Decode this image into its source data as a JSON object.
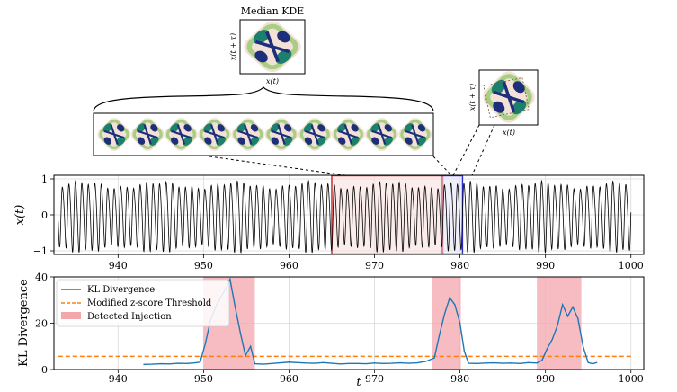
{
  "chart_data": [
    {
      "type": "line",
      "panel": "time-series",
      "ylabel": "x(t)",
      "xlim": [
        932.5,
        1001.5
      ],
      "ylim": [
        -1.1,
        1.1
      ],
      "xticks": [
        "940",
        "950",
        "960",
        "970",
        "980",
        "990",
        "1000"
      ],
      "yticks": [
        "1",
        "0",
        "-1"
      ],
      "grid": true,
      "series": [
        {
          "name": "x(t)",
          "color": "#000000",
          "description": "periodic oscillation, amplitude ~0.8-1.0, period ~1"
        }
      ],
      "highlights": [
        {
          "name": "median-window",
          "x_start": 965,
          "x_end": 978,
          "color": "#cc3333"
        },
        {
          "name": "current-window",
          "x_start": 977.8,
          "x_end": 980.3,
          "color": "#3333cc"
        }
      ]
    },
    {
      "type": "line",
      "panel": "kl-divergence",
      "xlabel": "t",
      "ylabel": "KL Divergence",
      "xlim": [
        932.5,
        1001.5
      ],
      "ylim": [
        0,
        40
      ],
      "xticks": [
        "940",
        "950",
        "960",
        "970",
        "980",
        "990",
        "1000"
      ],
      "yticks": [
        "0",
        "20",
        "40"
      ],
      "grid": true,
      "legend_position": "top-left",
      "series": [
        {
          "name": "KL Divergence",
          "color": "#1f77b4",
          "x": [
            943,
            944,
            945,
            946,
            947,
            948,
            949,
            949.6,
            950.2,
            950.8,
            951.4,
            952,
            952.6,
            953.1,
            953.7,
            954.3,
            954.9,
            955.5,
            956,
            957,
            958,
            959,
            960,
            961,
            962,
            963,
            964,
            965,
            966,
            967,
            968,
            969,
            970,
            971,
            972,
            973,
            974,
            975,
            976,
            977,
            977.6,
            978.2,
            978.8,
            979.4,
            980,
            980.5,
            981,
            982,
            983,
            984,
            985,
            986,
            987,
            988,
            989,
            989.6,
            990.2,
            990.8,
            991.4,
            992,
            992.6,
            993.2,
            993.8,
            994.4,
            995,
            995.5,
            996
          ],
          "y": [
            2.2,
            2.3,
            2.5,
            2.4,
            2.7,
            2.6,
            2.9,
            3.2,
            11,
            21,
            27,
            31,
            35,
            39,
            27,
            16,
            6,
            10,
            2.5,
            2.3,
            2.6,
            2.9,
            3.2,
            3,
            2.8,
            2.7,
            3,
            2.7,
            2.4,
            2.6,
            2.6,
            2.5,
            2.8,
            2.6,
            2.7,
            2.9,
            2.7,
            2.9,
            3.5,
            5,
            15,
            24,
            31,
            28,
            20,
            8,
            2.7,
            2.6,
            2.8,
            2.9,
            2.7,
            2.8,
            2.6,
            3,
            2.8,
            4,
            9,
            13,
            19,
            28,
            23,
            27,
            22,
            10,
            3,
            2.5,
            3
          ]
        },
        {
          "name": "Modified z-score Threshold",
          "color": "#ff7f0e",
          "dashed": true,
          "x": [
            933,
            1000
          ],
          "y": [
            5.7,
            5.7
          ]
        }
      ],
      "spans": [
        {
          "name": "Detected Injection",
          "x_start": 950,
          "x_end": 956,
          "color": "#f4a6ad"
        },
        {
          "name": "Detected Injection",
          "x_start": 976.7,
          "x_end": 980.1,
          "color": "#f4a6ad"
        },
        {
          "name": "Detected Injection",
          "x_start": 989,
          "x_end": 994.2,
          "color": "#f4a6ad"
        }
      ],
      "legend": [
        "KL Divergence",
        "Modified z-score Threshold",
        "Detected Injection"
      ]
    }
  ],
  "insets": {
    "median_title": "Median KDE",
    "median_ylabel": "x(t + τ)",
    "median_xlabel": "x(t)",
    "window_count": 10,
    "current_ylabel": "x(t + τ)",
    "current_xlabel": "x(t)"
  },
  "colors": {
    "kde_outer": "#f3e0d6",
    "kde_mid": "#a7cf83",
    "kde_inner": "#1d7f6d",
    "kde_core": "#1f2e7a"
  }
}
